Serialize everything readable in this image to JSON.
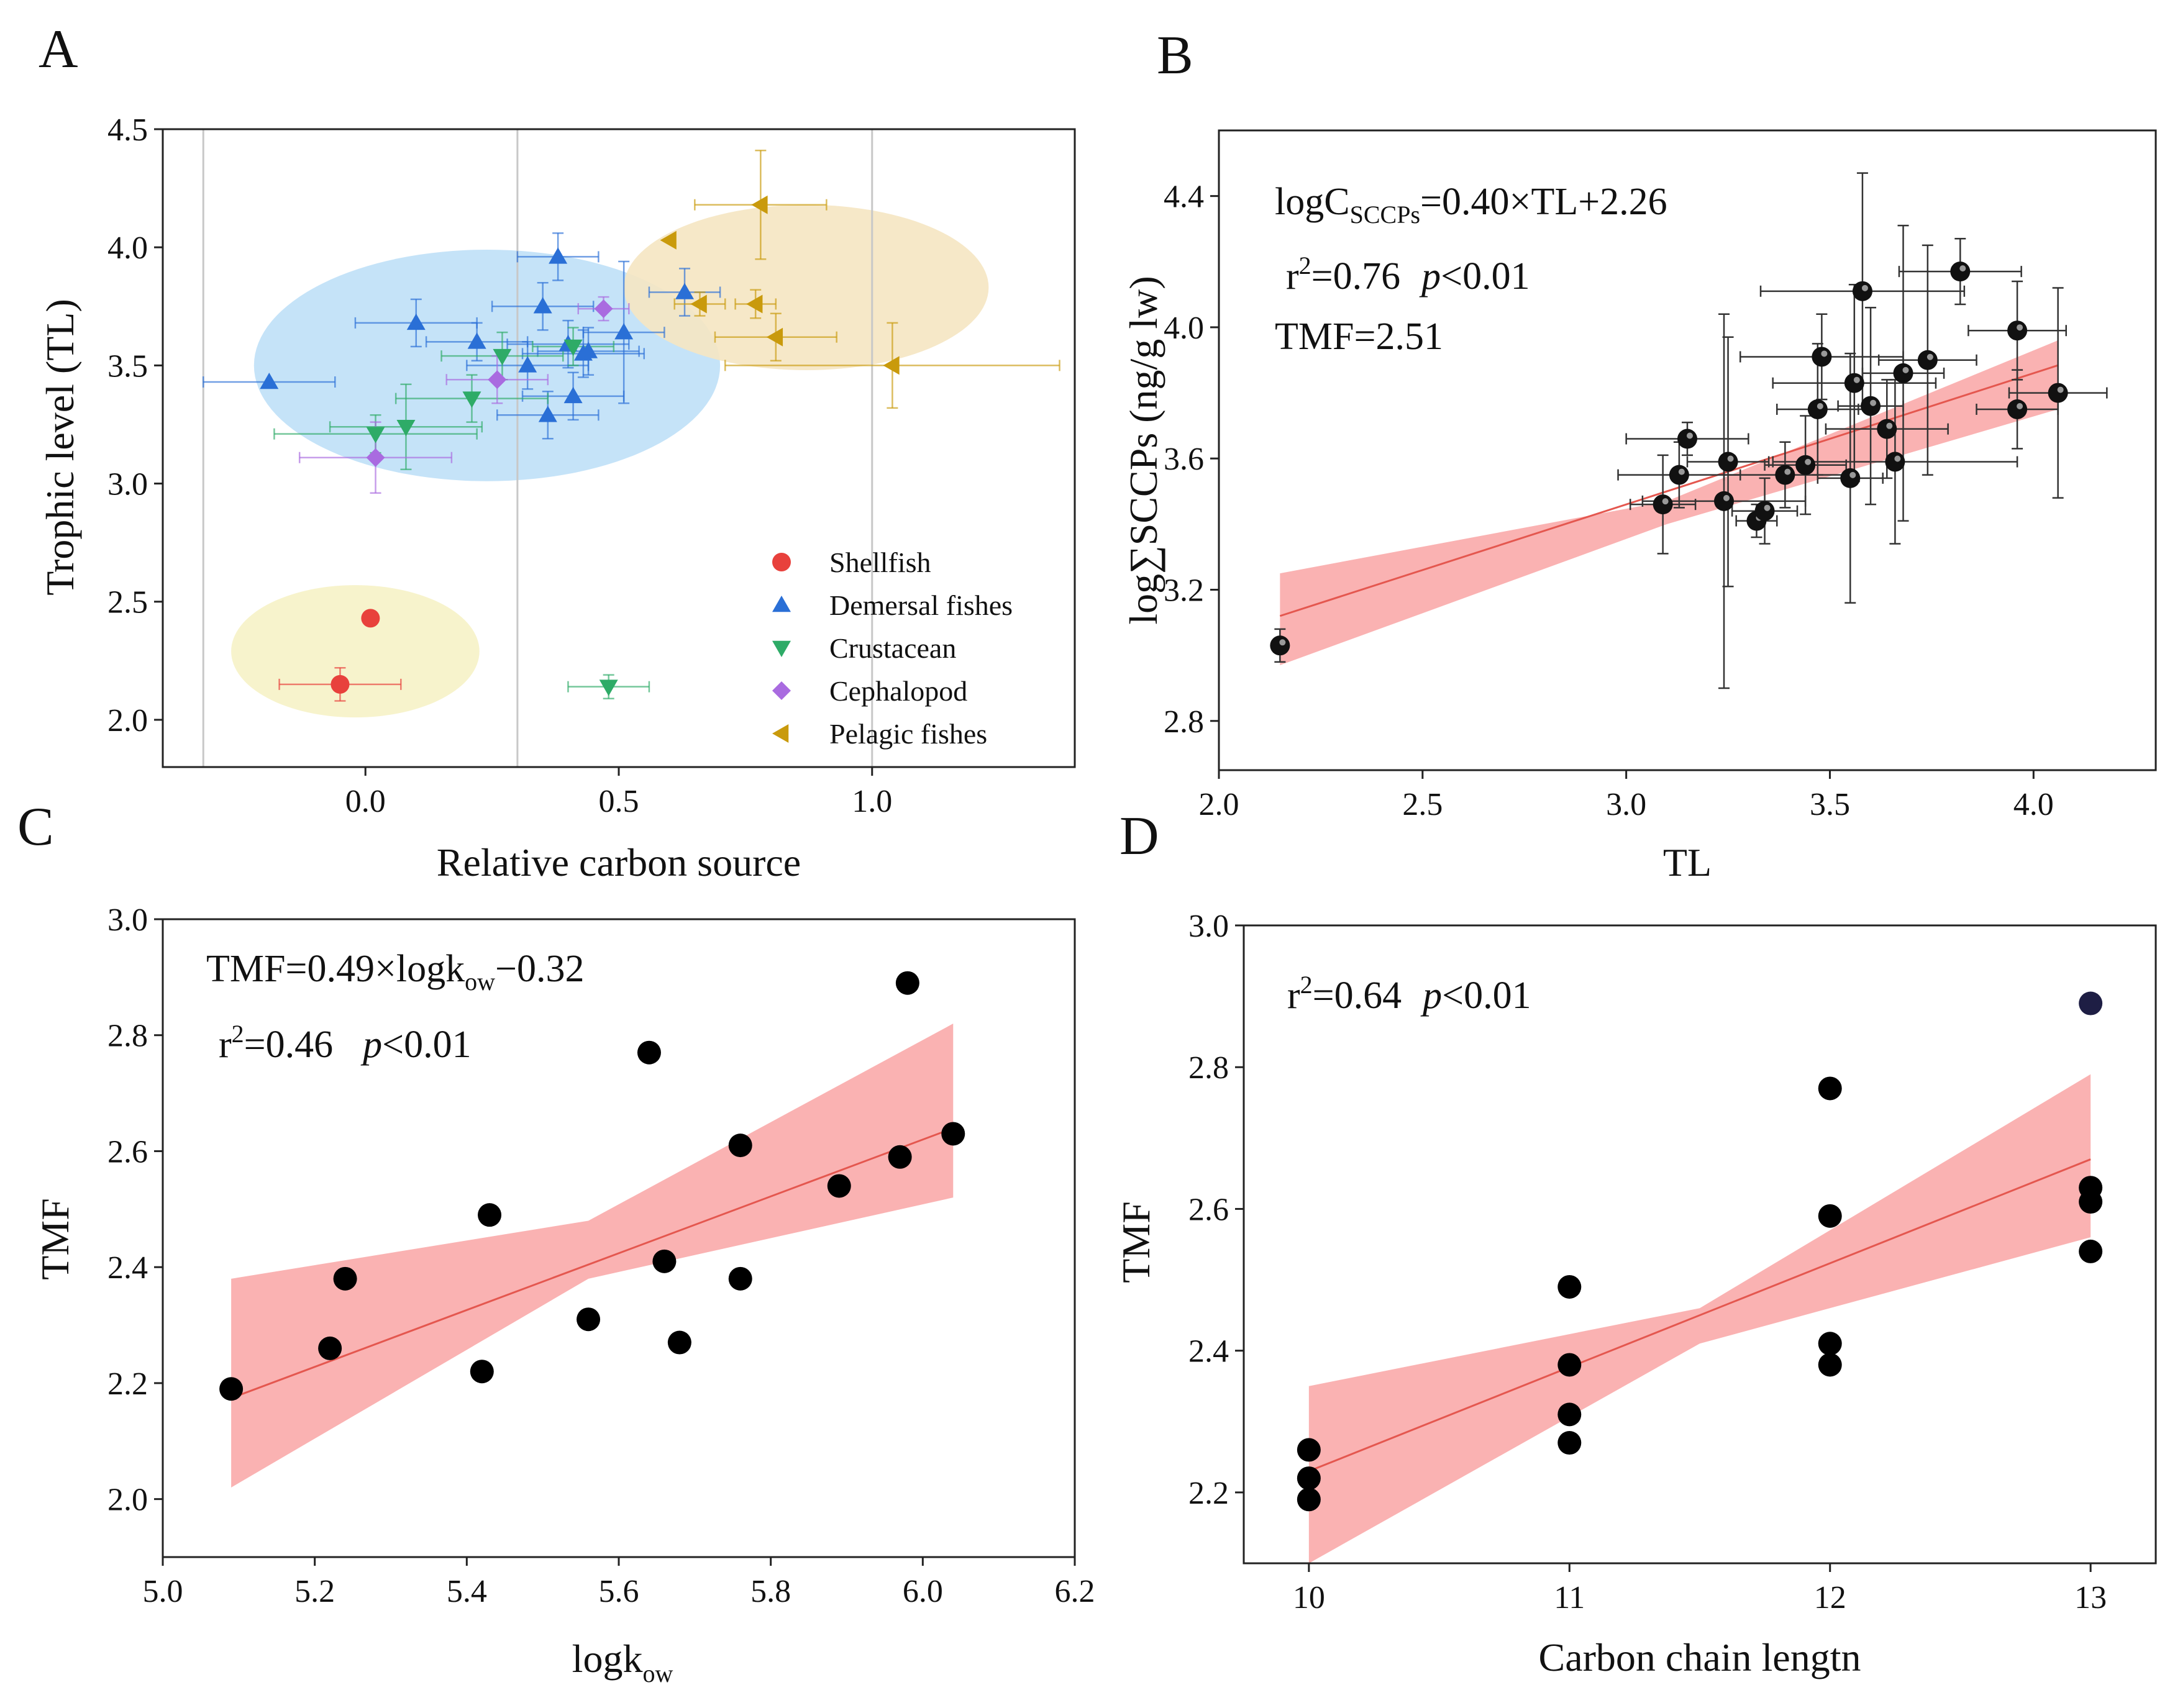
{
  "panels": {
    "A": {
      "label": "A"
    },
    "B": {
      "label": "B"
    },
    "C": {
      "label": "C"
    },
    "D": {
      "label": "D"
    }
  },
  "chart_data": [
    {
      "id": "A",
      "type": "scatter",
      "title": "",
      "xlabel": "Relative carbon source",
      "ylabel": "Trophic level (TL)",
      "xlim": [
        -0.4,
        1.4
      ],
      "ylim": [
        1.8,
        4.5
      ],
      "xticks": [
        0.0,
        0.5,
        1.0
      ],
      "xtick_labels": [
        "0.0",
        "0.5",
        "1.0"
      ],
      "yticks": [
        2.0,
        2.5,
        3.0,
        3.5,
        4.0,
        4.5
      ],
      "ytick_labels": [
        "2.0",
        "2.5",
        "3.0",
        "3.5",
        "4.0",
        "4.5"
      ],
      "vertical_reference_lines": [
        -0.32,
        0.3,
        1.0
      ],
      "legend_position": "bottom-right",
      "ellipses": [
        {
          "group": "Demersal fishes",
          "center": [
            0.24,
            3.5
          ],
          "semi_axes": [
            0.46,
            0.49
          ],
          "color": "#bfe0f7"
        },
        {
          "group": "Pelagic fishes",
          "center": [
            0.87,
            3.83
          ],
          "semi_axes": [
            0.36,
            0.35
          ],
          "color": "#f5e5c2"
        },
        {
          "group": "Shellfish",
          "center": [
            -0.02,
            2.29
          ],
          "semi_axes": [
            0.245,
            0.28
          ],
          "color": "#f6f2c6"
        }
      ],
      "series": [
        {
          "name": "Shellfish",
          "marker": "circle",
          "color": "#e8413c",
          "x": [
            0.01,
            -0.05
          ],
          "y": [
            2.43,
            2.15
          ],
          "xerr": [
            0,
            0.12
          ],
          "yerr": [
            0,
            0.07
          ]
        },
        {
          "name": "Demersal fishes",
          "marker": "triangle-up",
          "color": "#2a6fd6",
          "x": [
            -0.19,
            0.1,
            0.22,
            0.32,
            0.35,
            0.36,
            0.38,
            0.4,
            0.41,
            0.43,
            0.44,
            0.51,
            0.63
          ],
          "y": [
            3.43,
            3.68,
            3.6,
            3.5,
            3.75,
            3.29,
            3.96,
            3.59,
            3.37,
            3.55,
            3.56,
            3.64,
            3.81
          ],
          "xerr": [
            0.13,
            0.12,
            0.1,
            0.12,
            0.1,
            0.1,
            0.08,
            0.12,
            0.1,
            0.12,
            0.1,
            0.08,
            0.07
          ],
          "yerr": [
            0,
            0.1,
            0.08,
            0.1,
            0.1,
            0.1,
            0.1,
            0.1,
            0.1,
            0.1,
            0.1,
            0.3,
            0.1
          ]
        },
        {
          "name": "Crustacean",
          "marker": "triangle-down",
          "color": "#2eab67",
          "x": [
            0.02,
            0.08,
            0.21,
            0.27,
            0.41,
            0.48
          ],
          "y": [
            3.21,
            3.24,
            3.36,
            3.54,
            3.58,
            2.14
          ],
          "xerr": [
            0.2,
            0.15,
            0.15,
            0.12,
            0.08,
            0.08
          ],
          "yerr": [
            0.08,
            0.18,
            0.1,
            0.1,
            0.08,
            0.05
          ]
        },
        {
          "name": "Cephalopod",
          "marker": "diamond",
          "color": "#a96be0",
          "x": [
            0.02,
            0.26,
            0.47
          ],
          "y": [
            3.11,
            3.44,
            3.74
          ],
          "xerr": [
            0.15,
            0.1,
            0.05
          ],
          "yerr": [
            0.15,
            0.1,
            0.05
          ]
        },
        {
          "name": "Pelagic fishes",
          "marker": "triangle-left",
          "color": "#c99a0c",
          "x": [
            0.6,
            0.66,
            0.77,
            0.78,
            0.81,
            1.04
          ],
          "y": [
            4.03,
            3.76,
            3.76,
            4.18,
            3.62,
            3.5
          ],
          "xerr": [
            0,
            0.05,
            0.04,
            0.13,
            0.12,
            0.33
          ],
          "yerr": [
            0,
            0.05,
            0.06,
            0.23,
            0.1,
            0.18
          ]
        }
      ]
    },
    {
      "id": "B",
      "type": "scatter",
      "title": "",
      "xlabel": "TL",
      "ylabel": "log∑SCCPs (ng/g lw)",
      "xlim": [
        2.0,
        4.3
      ],
      "ylim": [
        2.65,
        4.6
      ],
      "xticks": [
        2.0,
        2.5,
        3.0,
        3.5,
        4.0
      ],
      "xtick_labels": [
        "2.0",
        "2.5",
        "3.0",
        "3.5",
        "4.0"
      ],
      "yticks": [
        2.8,
        3.2,
        3.6,
        4.0,
        4.4
      ],
      "ytick_labels": [
        "2.8",
        "3.2",
        "3.6",
        "4.0",
        "4.4"
      ],
      "annotations": {
        "equation_prefix": "logC",
        "equation_sub": "SCCPs",
        "equation_rest": "=0.40×TL+2.26",
        "r2_prefix": "r",
        "r2_sup": "2",
        "r2_value": "=0.76",
        "p_label": "p",
        "p_value": "<0.01",
        "tmf": "TMF=2.51"
      },
      "fit": {
        "slope": 0.4,
        "intercept": 2.26,
        "x_range": [
          2.15,
          4.06
        ]
      },
      "band": {
        "x": [
          2.15,
          3.1,
          4.06
        ],
        "lower": [
          2.97,
          3.4,
          3.75
        ],
        "upper": [
          3.25,
          3.47,
          3.96
        ]
      },
      "points": {
        "x": [
          2.15,
          3.09,
          3.13,
          3.15,
          3.24,
          3.25,
          3.32,
          3.34,
          3.39,
          3.44,
          3.47,
          3.48,
          3.55,
          3.56,
          3.58,
          3.6,
          3.64,
          3.66,
          3.68,
          3.74,
          3.82,
          3.96,
          3.96,
          4.06
        ],
        "y": [
          3.03,
          3.46,
          3.55,
          3.66,
          3.47,
          3.59,
          3.41,
          3.44,
          3.55,
          3.58,
          3.75,
          3.91,
          3.54,
          3.83,
          4.11,
          3.76,
          3.69,
          3.59,
          3.86,
          3.9,
          4.17,
          3.75,
          3.99,
          3.8
        ],
        "xerr": [
          0,
          0.08,
          0.15,
          0.15,
          0.2,
          0.1,
          0.05,
          0.08,
          0.15,
          0.1,
          0.1,
          0.2,
          0.08,
          0.2,
          0.25,
          0.08,
          0.15,
          0.3,
          0.1,
          0.12,
          0.15,
          0.1,
          0.12,
          0.12
        ],
        "yerr": [
          0.05,
          0.15,
          0.1,
          0.05,
          0.57,
          0.38,
          0.05,
          0.1,
          0.1,
          0.15,
          0.2,
          0.13,
          0.38,
          0.3,
          0.36,
          0.3,
          0.15,
          0.25,
          0.45,
          0.35,
          0.1,
          0.12,
          0.15,
          0.32
        ]
      }
    },
    {
      "id": "C",
      "type": "scatter",
      "title": "",
      "xlabel": "logk",
      "xlabel_sub": "ow",
      "ylabel": "TMF",
      "xlim": [
        5.0,
        6.2
      ],
      "ylim": [
        1.9,
        3.0
      ],
      "xticks": [
        5.0,
        5.2,
        5.4,
        5.6,
        5.8,
        6.0,
        6.2
      ],
      "xtick_labels": [
        "5.0",
        "5.2",
        "5.4",
        "5.6",
        "5.8",
        "6.0",
        "6.2"
      ],
      "yticks": [
        2.0,
        2.2,
        2.4,
        2.6,
        2.8,
        3.0
      ],
      "ytick_labels": [
        "2.0",
        "2.2",
        "2.4",
        "2.6",
        "2.8",
        "3.0"
      ],
      "annotations": {
        "equation_prefix": "TMF=0.49×logk",
        "equation_sub": "ow",
        "equation_rest": "−0.32",
        "r2_prefix": "r",
        "r2_sup": "2",
        "r2_value": "=0.46",
        "p_label": "p",
        "p_value": "<0.01"
      },
      "fit": {
        "slope": 0.49,
        "intercept": -0.32,
        "x_range": [
          5.09,
          6.04
        ]
      },
      "band": {
        "x": [
          5.09,
          5.56,
          6.04
        ],
        "lower": [
          2.02,
          2.38,
          2.52
        ],
        "upper": [
          2.38,
          2.48,
          2.82
        ]
      },
      "points": {
        "x": [
          5.09,
          5.22,
          5.24,
          5.42,
          5.43,
          5.56,
          5.64,
          5.66,
          5.68,
          5.76,
          5.76,
          5.89,
          5.97,
          5.98,
          6.04
        ],
        "y": [
          2.19,
          2.26,
          2.38,
          2.22,
          2.49,
          2.31,
          2.77,
          2.41,
          2.27,
          2.38,
          2.61,
          2.54,
          2.59,
          2.89,
          2.63
        ]
      }
    },
    {
      "id": "D",
      "type": "scatter",
      "title": "",
      "xlabel": "Carbon chain lengtn",
      "ylabel": "TMF",
      "xlim": [
        9.75,
        13.25
      ],
      "ylim": [
        2.1,
        3.0
      ],
      "xticks": [
        10,
        11,
        12,
        13
      ],
      "xtick_labels": [
        "10",
        "11",
        "12",
        "13"
      ],
      "yticks": [
        2.2,
        2.4,
        2.6,
        2.8,
        3.0
      ],
      "ytick_labels": [
        "2.2",
        "2.4",
        "2.6",
        "2.8",
        "3.0"
      ],
      "annotations": {
        "r2_prefix": "r",
        "r2_sup": "2",
        "r2_value": "=0.64",
        "p_label": "p",
        "p_value": "<0.01"
      },
      "fit": {
        "x_range": [
          10,
          13
        ],
        "y_range": [
          2.23,
          2.67
        ]
      },
      "band": {
        "x": [
          10,
          11.5,
          13
        ],
        "lower": [
          2.1,
          2.41,
          2.56
        ],
        "upper": [
          2.35,
          2.46,
          2.79
        ]
      },
      "points": {
        "x": [
          10,
          10,
          10,
          11,
          11,
          11,
          11,
          12,
          12,
          12,
          12,
          13,
          13,
          13,
          13
        ],
        "y": [
          2.19,
          2.22,
          2.26,
          2.27,
          2.31,
          2.38,
          2.49,
          2.38,
          2.41,
          2.59,
          2.77,
          2.54,
          2.61,
          2.63,
          2.89
        ],
        "highlight_index": 14
      }
    }
  ],
  "colors": {
    "fit_band": "#f9a5a5",
    "fit_line": "#e4574f",
    "point": "#000000",
    "highlight_point": "#1e1e44",
    "ref_line": "#c8c8c8"
  }
}
